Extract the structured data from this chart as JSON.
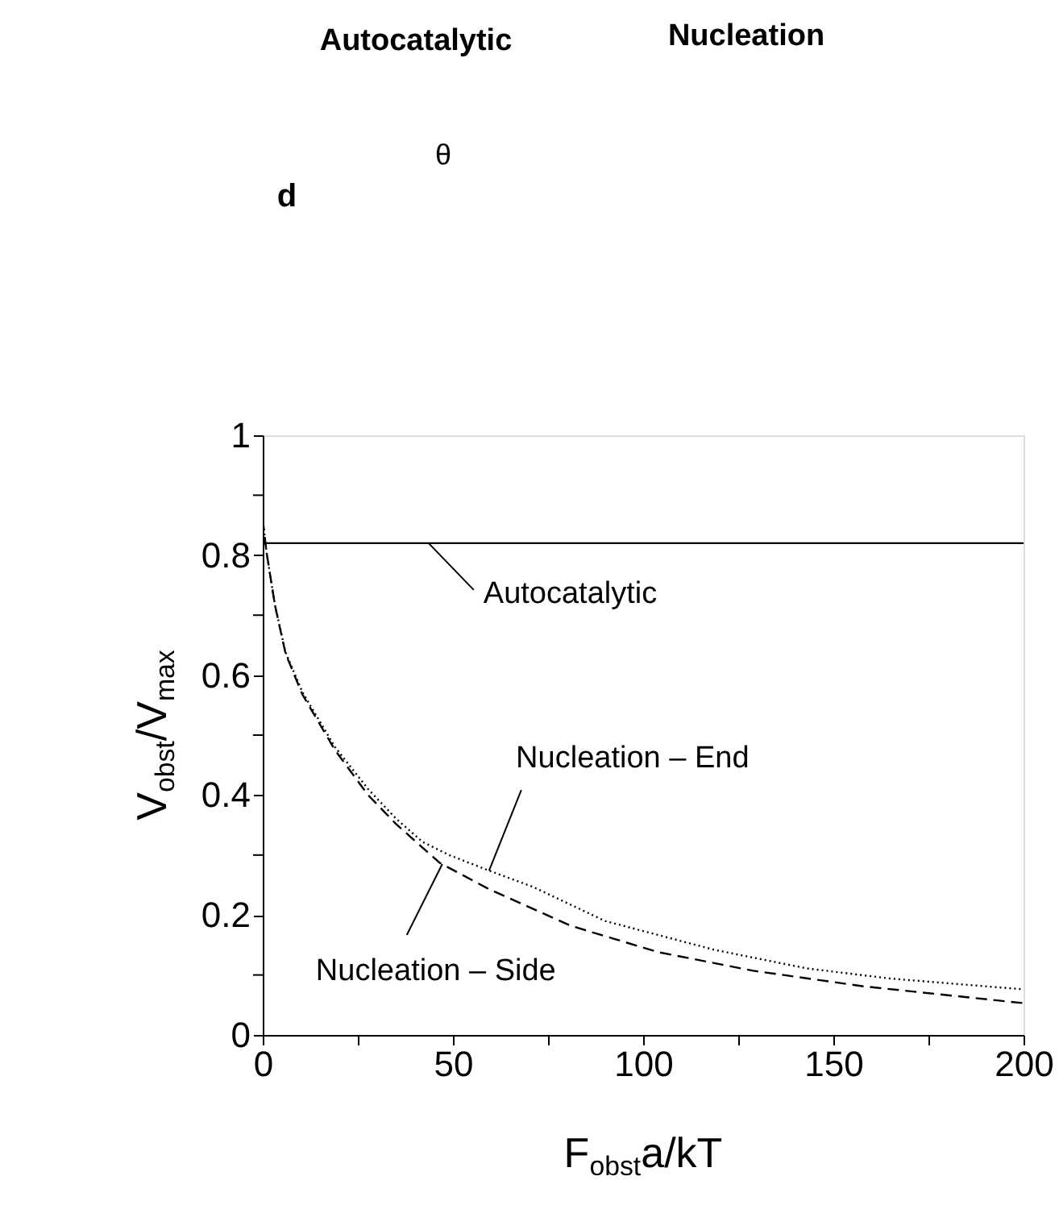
{
  "chart_data": {
    "type": "line",
    "xlabel": "F$_{obst}$a/kT",
    "ylabel": "V$_{obst}$/V$_{max}$",
    "xlim": [
      0,
      200
    ],
    "ylim": [
      0,
      1
    ],
    "xticks": [
      0,
      {
        "value": 25,
        "label": null
      },
      50,
      {
        "value": 75,
        "label": null
      },
      100,
      {
        "value": 125,
        "label": null
      },
      150,
      {
        "value": 175,
        "label": null
      },
      200
    ],
    "yticks": [
      0,
      {
        "value": 0.1,
        "label": null
      },
      0.2,
      {
        "value": 0.3,
        "label": null
      },
      0.4,
      {
        "value": 0.5,
        "label": null
      },
      0.6,
      {
        "value": 0.7,
        "label": null
      },
      0.8,
      {
        "value": 0.9,
        "label": null
      },
      1
    ],
    "grid": false,
    "series": [
      {
        "color": "#000000",
        "line_style": "solid",
        "x": [
          0,
          200
        ],
        "values": [
          0.82,
          0.82
        ]
      },
      {
        "color": "#000000",
        "line_style": "dotted",
        "x": [
          0,
          1,
          3.2,
          6,
          10.4,
          19,
          27.7,
          35,
          42,
          49,
          59.5,
          71,
          90,
          118.7,
          143,
          165,
          200
        ],
        "values": [
          0.86,
          0.805,
          0.717,
          0.638,
          0.572,
          0.48,
          0.41,
          0.361,
          0.322,
          0.3,
          0.274,
          0.247,
          0.19,
          0.142,
          0.111,
          0.094,
          0.076
        ]
      },
      {
        "color": "#000000",
        "line_style": "dashed",
        "x": [
          0,
          1,
          3.2,
          6,
          10.4,
          19,
          27.7,
          35,
          46.5,
          59.5,
          81,
          104,
          129,
          158,
          200
        ],
        "values": [
          0.86,
          0.805,
          0.717,
          0.636,
          0.568,
          0.475,
          0.4,
          0.352,
          0.287,
          0.243,
          0.182,
          0.138,
          0.107,
          0.081,
          0.053
        ]
      }
    ],
    "annotations": [
      {
        "text": "Autocatalytic",
        "x": 43.6,
        "y": 0.82
      },
      {
        "text": "Nucleation – End",
        "x": 59.5,
        "y": 0.274
      },
      {
        "text": "Nucleation – Side",
        "x": 47.2,
        "y": 0.285
      },
      "Autocatalytic",
      "Nucleation",
      "d",
      "θ"
    ]
  }
}
